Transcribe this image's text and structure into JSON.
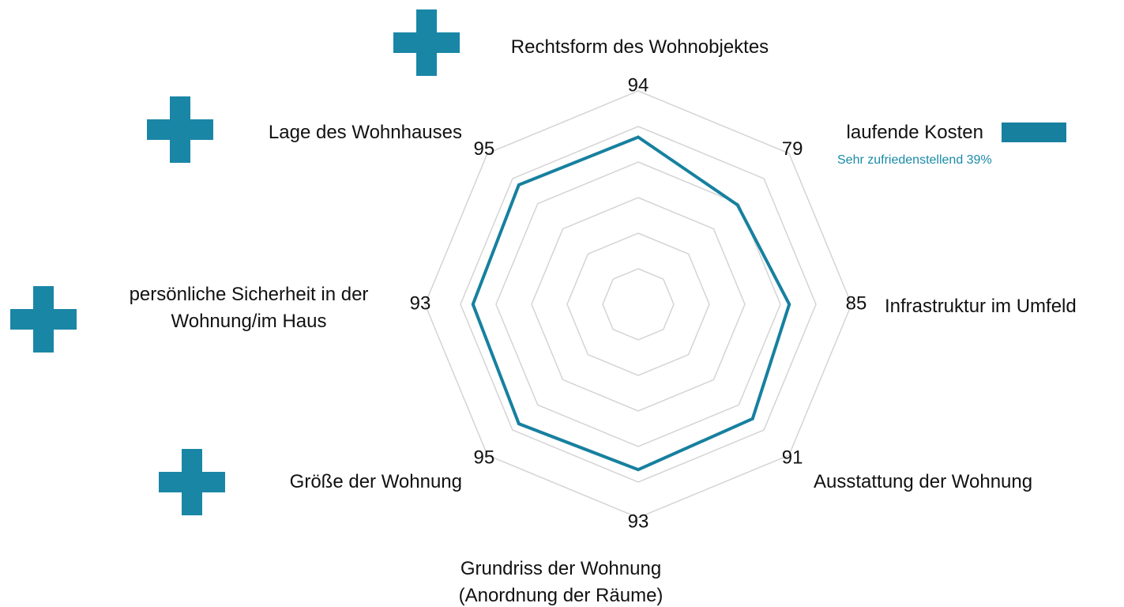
{
  "chart_data": {
    "type": "radar",
    "categories": [
      "Rechtsform des Wohnobjektes",
      "laufende Kosten",
      "Infrastruktur im Umfeld",
      "Ausstattung der Wohnung",
      "Grundriss der Wohnung (Anordnung der Räume)",
      "Größe der Wohnung",
      "persönliche Sicherheit in der Wohnung/im Haus",
      "Lage des Wohnhauses"
    ],
    "values": [
      94,
      79,
      85,
      91,
      93,
      95,
      93,
      95
    ],
    "color": "#17809f",
    "ylim": [
      0,
      120
    ],
    "yticks": [
      20,
      40,
      60,
      80,
      100,
      120
    ],
    "grid": true,
    "annotation": "Sehr zufriedenstellend 39%"
  }
}
